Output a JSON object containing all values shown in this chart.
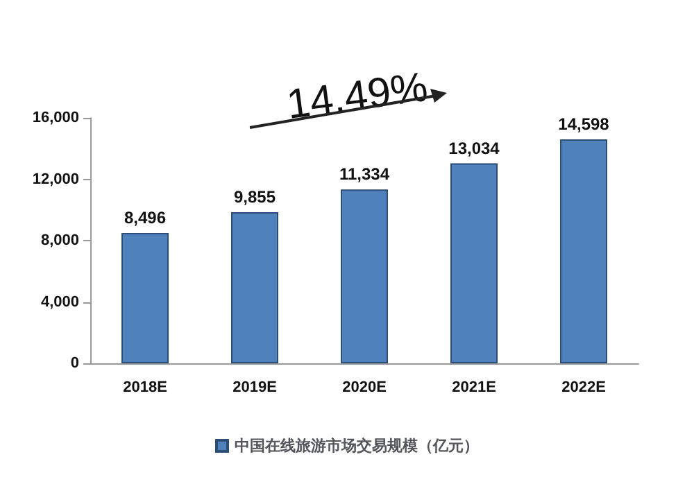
{
  "chart_data": {
    "type": "bar",
    "categories": [
      "2018E",
      "2019E",
      "2020E",
      "2021E",
      "2022E"
    ],
    "series": [
      {
        "name": "中国在线旅游市场交易规模（亿元）",
        "color": "#4f81bd",
        "values": [
          8496,
          9855,
          11334,
          13034,
          14598
        ]
      }
    ],
    "value_labels": [
      "8,496",
      "9,855",
      "11,334",
      "13,034",
      "14,598"
    ],
    "ylim": [
      0,
      16000
    ],
    "yticks": [
      {
        "value": 0,
        "label": "0"
      },
      {
        "value": 4000,
        "label": "4,000"
      },
      {
        "value": 8000,
        "label": "8,000"
      },
      {
        "value": 12000,
        "label": "12,000"
      },
      {
        "value": 16000,
        "label": "16,000"
      }
    ],
    "annotations": [
      "14.49%"
    ],
    "grid": false,
    "legend": "bottom"
  }
}
